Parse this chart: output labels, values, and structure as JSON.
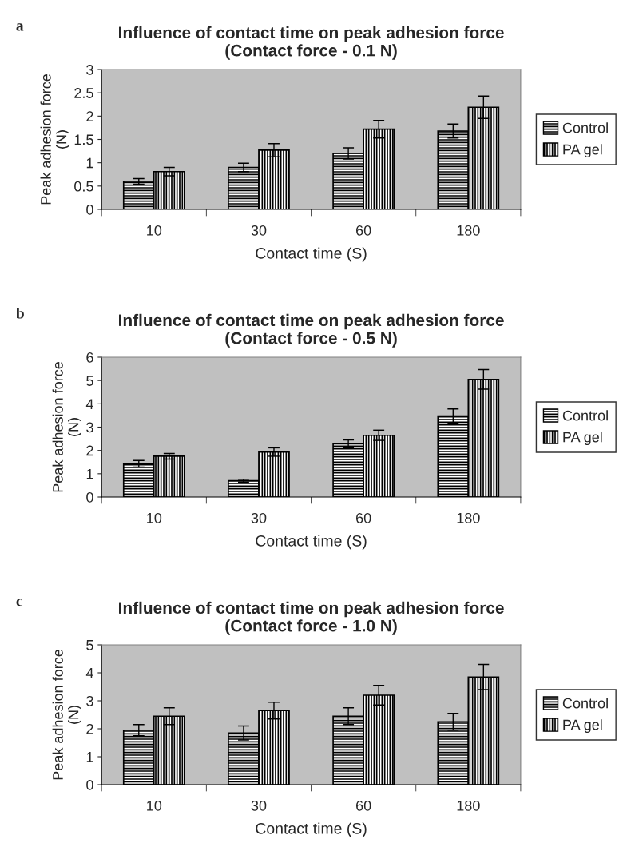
{
  "chart_data": [
    {
      "type": "bar",
      "title": "Influence of contact time on peak adhesion force\n(Contact force - 0.1 N)",
      "xlabel": "Contact time (S)",
      "ylabel": "Peak adhesion force\n(N)",
      "annotations": [
        "a"
      ],
      "categories": [
        "10",
        "30",
        "60",
        "180"
      ],
      "series": [
        {
          "name": "Control",
          "color": "#000000",
          "values": [
            0.6,
            0.9,
            1.2,
            1.68
          ],
          "errors": [
            0.06,
            0.09,
            0.12,
            0.15
          ]
        },
        {
          "name": "PA gel",
          "color": "#000000",
          "values": [
            0.81,
            1.27,
            1.72,
            2.19
          ],
          "errors": [
            0.09,
            0.14,
            0.19,
            0.24
          ]
        }
      ],
      "ylim": [
        0,
        3
      ],
      "yticks": [
        0,
        0.5,
        1,
        1.5,
        2,
        2.5,
        3
      ],
      "grid": false,
      "legend": "right"
    },
    {
      "type": "bar",
      "title": "Influence of contact time on peak adhesion force\n(Contact force - 0.5 N)",
      "xlabel": "Contact time (S)",
      "ylabel": "Peak adhesion force\n(N)",
      "annotations": [
        "b"
      ],
      "categories": [
        "10",
        "30",
        "60",
        "180"
      ],
      "series": [
        {
          "name": "Control",
          "color": "#000000",
          "values": [
            1.43,
            0.7,
            2.28,
            3.48
          ],
          "errors": [
            0.14,
            0.06,
            0.17,
            0.3
          ]
        },
        {
          "name": "PA gel",
          "color": "#000000",
          "values": [
            1.75,
            1.93,
            2.65,
            5.05
          ],
          "errors": [
            0.12,
            0.18,
            0.22,
            0.42
          ]
        }
      ],
      "ylim": [
        0,
        6
      ],
      "yticks": [
        0,
        1,
        2,
        3,
        4,
        5,
        6
      ],
      "grid": false,
      "legend": "right"
    },
    {
      "type": "bar",
      "title": "Influence of contact time on peak adhesion force\n(Contact force - 1.0 N)",
      "xlabel": "Contact time (S)",
      "ylabel": "Peak adhesion force\n(N)",
      "annotations": [
        "c"
      ],
      "categories": [
        "10",
        "30",
        "60",
        "180"
      ],
      "series": [
        {
          "name": "Control",
          "color": "#000000",
          "values": [
            1.95,
            1.85,
            2.45,
            2.25
          ],
          "errors": [
            0.2,
            0.25,
            0.3,
            0.3
          ]
        },
        {
          "name": "PA gel",
          "color": "#000000",
          "values": [
            2.45,
            2.65,
            3.2,
            3.85
          ],
          "errors": [
            0.3,
            0.3,
            0.35,
            0.45
          ]
        }
      ],
      "ylim": [
        0,
        5
      ],
      "yticks": [
        0,
        1,
        2,
        3,
        4,
        5
      ],
      "grid": false,
      "legend": "right"
    }
  ]
}
